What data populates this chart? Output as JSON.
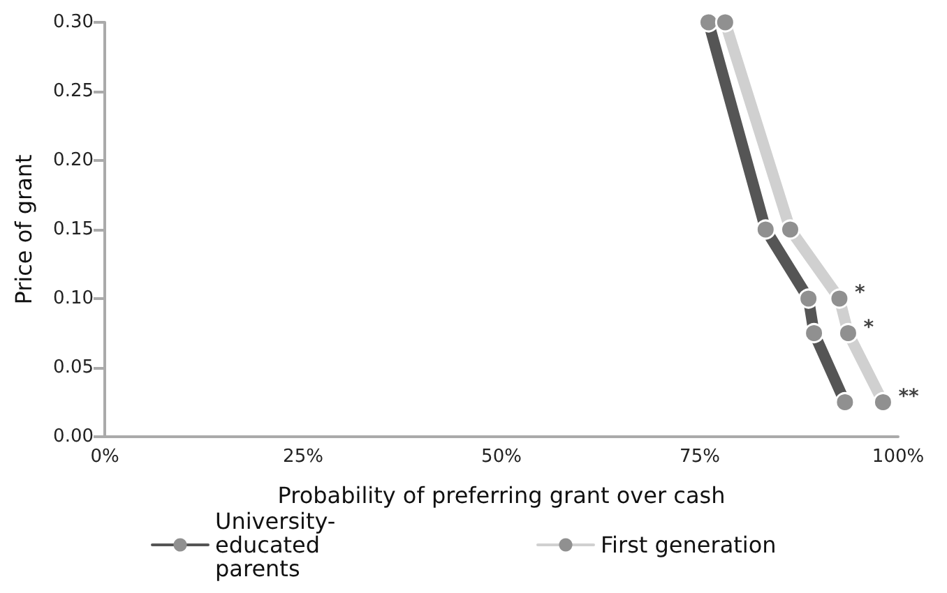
{
  "chart_data": {
    "type": "line",
    "xlabel": "Probability of preferring grant over cash",
    "ylabel": "Price of grant",
    "xlim": [
      0,
      100
    ],
    "xticks": [
      {
        "value": 0,
        "label": "0%"
      },
      {
        "value": 25,
        "label": "25%"
      },
      {
        "value": 50,
        "label": "50%"
      },
      {
        "value": 75,
        "label": "75%"
      },
      {
        "value": 100,
        "label": "100%"
      }
    ],
    "ylim": [
      0,
      0.3
    ],
    "yticks": [
      {
        "value": 0,
        "label": "0.00"
      },
      {
        "value": 0.05,
        "label": "0.05"
      },
      {
        "value": 0.1,
        "label": "0.10"
      },
      {
        "value": 0.15,
        "label": "0.15"
      },
      {
        "value": 0.2,
        "label": "0.20"
      },
      {
        "value": 0.25,
        "label": "0.25"
      },
      {
        "value": 0.3,
        "label": "0.30"
      }
    ],
    "series": [
      {
        "name": "University-educated parents",
        "color": "#555555",
        "x": [
          76.1,
          83.3,
          88.7,
          89.4,
          93.3
        ],
        "values": [
          0.3,
          0.15,
          0.1,
          0.075,
          0.025
        ]
      },
      {
        "name": "First generation",
        "color": "#d0d0d0",
        "x": [
          78.2,
          86.4,
          92.6,
          93.7,
          98.1
        ],
        "values": [
          0.3,
          0.15,
          0.1,
          0.075,
          0.025
        ]
      }
    ],
    "annotations": [
      {
        "text": "*",
        "x": 92.6,
        "y": 0.1
      },
      {
        "text": "*",
        "x": 93.7,
        "y": 0.075
      },
      {
        "text": "**",
        "x": 98.1,
        "y": 0.025
      }
    ],
    "marker": "circle",
    "grid": false,
    "legend": "bottom"
  }
}
